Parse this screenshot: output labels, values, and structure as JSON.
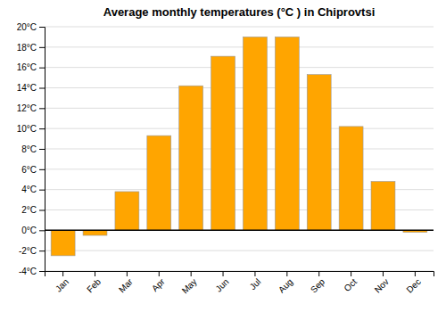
{
  "chart_data": {
    "type": "bar",
    "title": "Average monthly temperatures (°C ) in Chiprovtsi",
    "categories": [
      "Jan",
      "Feb",
      "Mar",
      "Apr",
      "May",
      "Jun",
      "Jul",
      "Aug",
      "Sep",
      "Oct",
      "Nov",
      "Dec"
    ],
    "values": [
      -2.5,
      -0.5,
      3.8,
      9.3,
      14.2,
      17.1,
      19.0,
      19.0,
      15.3,
      10.2,
      4.8,
      -0.2
    ],
    "color": "#FFA500",
    "ylim": [
      -4,
      20
    ],
    "yticks": [
      {
        "value": -4,
        "label": "-4°C"
      },
      {
        "value": -2,
        "label": "-2°C"
      },
      {
        "value": 0,
        "label": "0°C"
      },
      {
        "value": 2,
        "label": "2°C"
      },
      {
        "value": 4,
        "label": "4°C"
      },
      {
        "value": 6,
        "label": "6°C"
      },
      {
        "value": 8,
        "label": "8°C"
      },
      {
        "value": 10,
        "label": "10°C"
      },
      {
        "value": 12,
        "label": "12°C"
      },
      {
        "value": 14,
        "label": "14°C"
      },
      {
        "value": 16,
        "label": "16°C"
      },
      {
        "value": 18,
        "label": "18°C"
      },
      {
        "value": 20,
        "label": "20°C"
      }
    ],
    "grid": true
  }
}
